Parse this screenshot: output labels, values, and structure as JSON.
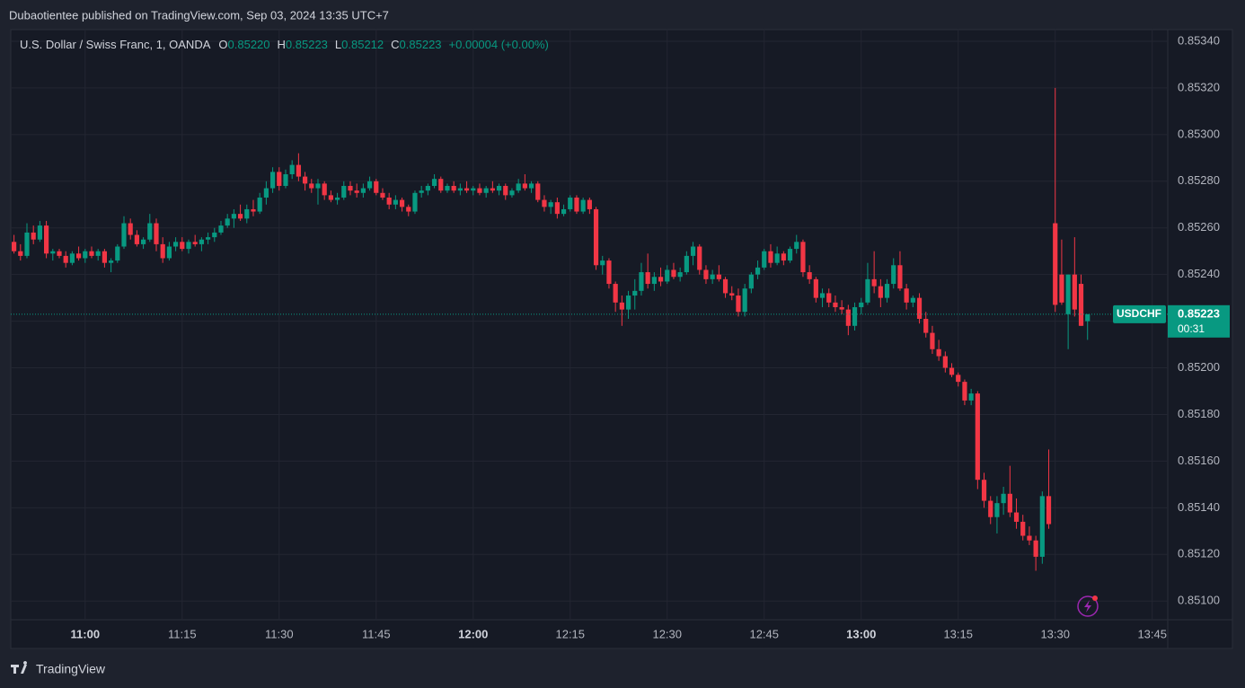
{
  "chart_data": {
    "type": "candlestick",
    "publisher_line": "Dubaotientee published on TradingView.com, Sep 03, 2024 13:35 UTC+7",
    "symbol_line": "U.S. Dollar / Swiss Franc, 1, OANDA",
    "ohlc_legend": [
      {
        "key": "O",
        "text": "0.85220"
      },
      {
        "key": "H",
        "text": "0.85223"
      },
      {
        "key": "L",
        "text": "0.85212"
      },
      {
        "key": "C",
        "text": "0.85223"
      }
    ],
    "change": "+0.00004 (+0.00%)",
    "symbol": "USDCHF",
    "last_price": {
      "value": 0.85223,
      "label": "0.85223"
    },
    "countdown": "00:31",
    "brand": "TradingView",
    "up_color": "#089981",
    "down_color": "#f23645",
    "grid": true,
    "xlim": [
      648.5,
      827.4
    ],
    "xticks": [
      {
        "value": 660,
        "label": "11:00"
      },
      {
        "value": 675,
        "label": "11:15"
      },
      {
        "value": 690,
        "label": "11:30"
      },
      {
        "value": 705,
        "label": "11:45"
      },
      {
        "value": 720,
        "label": "12:00"
      },
      {
        "value": 735,
        "label": "12:15"
      },
      {
        "value": 750,
        "label": "12:30"
      },
      {
        "value": 765,
        "label": "12:45"
      },
      {
        "value": 780,
        "label": "13:00"
      },
      {
        "value": 795,
        "label": "13:15"
      },
      {
        "value": 810,
        "label": "13:30"
      },
      {
        "value": 825,
        "label": "13:45"
      }
    ],
    "ylim": [
      0.85092,
      0.85345
    ],
    "yticks": [
      {
        "value": 0.851,
        "label": "0.85100"
      },
      {
        "value": 0.8512,
        "label": "0.85120"
      },
      {
        "value": 0.8514,
        "label": "0.85140"
      },
      {
        "value": 0.8516,
        "label": "0.85160"
      },
      {
        "value": 0.8518,
        "label": "0.85180"
      },
      {
        "value": 0.852,
        "label": "0.85200"
      },
      {
        "value": 0.8522,
        "label": "0.85220"
      },
      {
        "value": 0.8524,
        "label": "0.85240"
      },
      {
        "value": 0.8526,
        "label": "0.85260"
      },
      {
        "value": 0.8528,
        "label": "0.85280"
      },
      {
        "value": 0.853,
        "label": "0.85300"
      },
      {
        "value": 0.8532,
        "label": "0.85320"
      },
      {
        "value": 0.8534,
        "label": "0.85340"
      }
    ],
    "x": [
      649,
      650,
      651,
      652,
      653,
      654,
      655,
      656,
      657,
      658,
      659,
      660,
      661,
      662,
      663,
      664,
      665,
      666,
      667,
      668,
      669,
      670,
      671,
      672,
      673,
      674,
      675,
      676,
      677,
      678,
      679,
      680,
      681,
      682,
      683,
      684,
      685,
      686,
      687,
      688,
      689,
      690,
      691,
      692,
      693,
      694,
      695,
      696,
      697,
      698,
      699,
      700,
      701,
      702,
      703,
      704,
      705,
      706,
      707,
      708,
      709,
      710,
      711,
      712,
      713,
      714,
      715,
      716,
      717,
      718,
      719,
      720,
      721,
      722,
      723,
      724,
      725,
      726,
      727,
      728,
      729,
      730,
      731,
      732,
      733,
      734,
      735,
      736,
      737,
      738,
      739,
      740,
      741,
      742,
      743,
      744,
      745,
      746,
      747,
      748,
      749,
      750,
      751,
      752,
      753,
      754,
      755,
      756,
      757,
      758,
      759,
      760,
      761,
      762,
      763,
      764,
      765,
      766,
      767,
      768,
      769,
      770,
      771,
      772,
      773,
      774,
      775,
      776,
      777,
      778,
      779,
      780,
      781,
      782,
      783,
      784,
      785,
      786,
      787,
      788,
      789,
      790,
      791,
      792,
      793,
      794,
      795,
      796,
      797,
      798,
      799,
      800,
      801,
      802,
      803,
      804,
      805,
      806,
      807,
      808,
      809,
      810,
      811,
      812,
      813,
      814,
      815
    ],
    "candles": [
      [
        0.85254,
        0.85257,
        0.85249,
        0.8525
      ],
      [
        0.8525,
        0.85253,
        0.85246,
        0.85248
      ],
      [
        0.85248,
        0.85262,
        0.85247,
        0.85258
      ],
      [
        0.85258,
        0.85261,
        0.85253,
        0.85255
      ],
      [
        0.85255,
        0.85263,
        0.85254,
        0.85261
      ],
      [
        0.85261,
        0.85263,
        0.85247,
        0.85249
      ],
      [
        0.85249,
        0.85251,
        0.85246,
        0.8525
      ],
      [
        0.8525,
        0.85251,
        0.85247,
        0.85248
      ],
      [
        0.85248,
        0.8525,
        0.85243,
        0.85245
      ],
      [
        0.85245,
        0.8525,
        0.85244,
        0.85249
      ],
      [
        0.85249,
        0.85252,
        0.85246,
        0.85247
      ],
      [
        0.85247,
        0.85251,
        0.85245,
        0.8525
      ],
      [
        0.8525,
        0.85252,
        0.85247,
        0.85248
      ],
      [
        0.85248,
        0.85251,
        0.85246,
        0.8525
      ],
      [
        0.8525,
        0.85251,
        0.85243,
        0.85245
      ],
      [
        0.85245,
        0.85247,
        0.85241,
        0.85246
      ],
      [
        0.85246,
        0.85253,
        0.85245,
        0.85252
      ],
      [
        0.85252,
        0.85265,
        0.85251,
        0.85262
      ],
      [
        0.85262,
        0.85264,
        0.85255,
        0.85257
      ],
      [
        0.85257,
        0.85259,
        0.85252,
        0.85253
      ],
      [
        0.85253,
        0.85256,
        0.85251,
        0.85255
      ],
      [
        0.85255,
        0.85266,
        0.85254,
        0.85262
      ],
      [
        0.85262,
        0.85264,
        0.8525,
        0.85253
      ],
      [
        0.85253,
        0.85256,
        0.85245,
        0.85247
      ],
      [
        0.85247,
        0.85254,
        0.85246,
        0.85252
      ],
      [
        0.85252,
        0.85256,
        0.8525,
        0.85254
      ],
      [
        0.85254,
        0.85256,
        0.8525,
        0.85251
      ],
      [
        0.85251,
        0.85255,
        0.85249,
        0.85254
      ],
      [
        0.85254,
        0.85257,
        0.85252,
        0.85253
      ],
      [
        0.85253,
        0.85256,
        0.8525,
        0.85255
      ],
      [
        0.85255,
        0.85258,
        0.85253,
        0.85256
      ],
      [
        0.85256,
        0.8526,
        0.85254,
        0.85258
      ],
      [
        0.85258,
        0.85263,
        0.85257,
        0.85261
      ],
      [
        0.85261,
        0.85266,
        0.8526,
        0.85264
      ],
      [
        0.85264,
        0.85268,
        0.8526,
        0.85266
      ],
      [
        0.85266,
        0.8527,
        0.85263,
        0.85264
      ],
      [
        0.85264,
        0.8527,
        0.85262,
        0.85268
      ],
      [
        0.85268,
        0.85272,
        0.85265,
        0.85267
      ],
      [
        0.85267,
        0.85275,
        0.85266,
        0.85273
      ],
      [
        0.85273,
        0.8528,
        0.8527,
        0.85277
      ],
      [
        0.85277,
        0.85286,
        0.85275,
        0.85284
      ],
      [
        0.85284,
        0.85286,
        0.85276,
        0.85278
      ],
      [
        0.85278,
        0.85285,
        0.85277,
        0.85283
      ],
      [
        0.85283,
        0.85289,
        0.85281,
        0.85287
      ],
      [
        0.85287,
        0.85292,
        0.8528,
        0.85282
      ],
      [
        0.85282,
        0.85284,
        0.85276,
        0.85279
      ],
      [
        0.85279,
        0.85281,
        0.85275,
        0.85277
      ],
      [
        0.85277,
        0.85281,
        0.8527,
        0.85279
      ],
      [
        0.85279,
        0.8528,
        0.85272,
        0.85274
      ],
      [
        0.85274,
        0.85276,
        0.85271,
        0.85272
      ],
      [
        0.85272,
        0.85275,
        0.8527,
        0.85273
      ],
      [
        0.85273,
        0.8528,
        0.85272,
        0.85278
      ],
      [
        0.85278,
        0.8528,
        0.85274,
        0.85276
      ],
      [
        0.85276,
        0.85279,
        0.85273,
        0.85275
      ],
      [
        0.85275,
        0.85279,
        0.85273,
        0.85277
      ],
      [
        0.85277,
        0.85282,
        0.85276,
        0.8528
      ],
      [
        0.8528,
        0.85281,
        0.85274,
        0.85275
      ],
      [
        0.85275,
        0.85277,
        0.85272,
        0.85273
      ],
      [
        0.85273,
        0.85275,
        0.85268,
        0.8527
      ],
      [
        0.8527,
        0.85274,
        0.85268,
        0.85272
      ],
      [
        0.85272,
        0.85273,
        0.85267,
        0.85269
      ],
      [
        0.85269,
        0.8527,
        0.85265,
        0.85267
      ],
      [
        0.85267,
        0.85276,
        0.85266,
        0.85275
      ],
      [
        0.85275,
        0.85278,
        0.85273,
        0.85276
      ],
      [
        0.85276,
        0.85279,
        0.85274,
        0.85278
      ],
      [
        0.85278,
        0.85283,
        0.85277,
        0.85281
      ],
      [
        0.85281,
        0.85282,
        0.85275,
        0.85276
      ],
      [
        0.85276,
        0.85279,
        0.85275,
        0.85278
      ],
      [
        0.85278,
        0.8528,
        0.85275,
        0.85276
      ],
      [
        0.85276,
        0.85279,
        0.85274,
        0.85277
      ],
      [
        0.85277,
        0.8528,
        0.85275,
        0.85276
      ],
      [
        0.85276,
        0.85278,
        0.85274,
        0.85277
      ],
      [
        0.85277,
        0.85279,
        0.85274,
        0.85275
      ],
      [
        0.85275,
        0.85278,
        0.85273,
        0.85277
      ],
      [
        0.85277,
        0.8528,
        0.85275,
        0.85276
      ],
      [
        0.85276,
        0.85279,
        0.85274,
        0.85278
      ],
      [
        0.85278,
        0.85279,
        0.85272,
        0.85274
      ],
      [
        0.85274,
        0.85277,
        0.85273,
        0.85276
      ],
      [
        0.85276,
        0.85281,
        0.85275,
        0.85279
      ],
      [
        0.85279,
        0.85283,
        0.85276,
        0.85277
      ],
      [
        0.85277,
        0.8528,
        0.85275,
        0.85279
      ],
      [
        0.85279,
        0.8528,
        0.85271,
        0.85272
      ],
      [
        0.85272,
        0.85274,
        0.85267,
        0.85269
      ],
      [
        0.85269,
        0.85272,
        0.85266,
        0.85271
      ],
      [
        0.85271,
        0.85273,
        0.85264,
        0.85266
      ],
      [
        0.85266,
        0.8527,
        0.85265,
        0.85268
      ],
      [
        0.85268,
        0.85274,
        0.85267,
        0.85273
      ],
      [
        0.85273,
        0.85274,
        0.85266,
        0.85267
      ],
      [
        0.85267,
        0.85273,
        0.85266,
        0.85272
      ],
      [
        0.85272,
        0.85273,
        0.85266,
        0.85268
      ],
      [
        0.85268,
        0.85269,
        0.85242,
        0.85244
      ],
      [
        0.85244,
        0.85248,
        0.8524,
        0.85246
      ],
      [
        0.85246,
        0.85247,
        0.85234,
        0.85236
      ],
      [
        0.85236,
        0.85237,
        0.85224,
        0.85228
      ],
      [
        0.85228,
        0.85231,
        0.85218,
        0.85225
      ],
      [
        0.85225,
        0.85233,
        0.85221,
        0.85231
      ],
      [
        0.85231,
        0.85238,
        0.85225,
        0.85233
      ],
      [
        0.85233,
        0.85245,
        0.85231,
        0.85241
      ],
      [
        0.85241,
        0.85249,
        0.85234,
        0.85236
      ],
      [
        0.85236,
        0.85241,
        0.85233,
        0.85239
      ],
      [
        0.85239,
        0.85243,
        0.85235,
        0.85237
      ],
      [
        0.85237,
        0.85244,
        0.85236,
        0.85242
      ],
      [
        0.85242,
        0.85245,
        0.85238,
        0.85239
      ],
      [
        0.85239,
        0.85243,
        0.85237,
        0.85241
      ],
      [
        0.85241,
        0.8525,
        0.8524,
        0.85248
      ],
      [
        0.85248,
        0.85254,
        0.85244,
        0.85252
      ],
      [
        0.85252,
        0.85253,
        0.8524,
        0.85242
      ],
      [
        0.85242,
        0.85244,
        0.85236,
        0.85238
      ],
      [
        0.85238,
        0.85242,
        0.85236,
        0.8524
      ],
      [
        0.8524,
        0.85244,
        0.85237,
        0.85238
      ],
      [
        0.85238,
        0.85239,
        0.8523,
        0.85232
      ],
      [
        0.85232,
        0.85235,
        0.85229,
        0.85231
      ],
      [
        0.85231,
        0.85234,
        0.85222,
        0.85224
      ],
      [
        0.85224,
        0.85236,
        0.85222,
        0.85234
      ],
      [
        0.85234,
        0.85241,
        0.85232,
        0.8524
      ],
      [
        0.8524,
        0.85246,
        0.85238,
        0.85243
      ],
      [
        0.85243,
        0.85251,
        0.85242,
        0.8525
      ],
      [
        0.8525,
        0.85253,
        0.85243,
        0.85245
      ],
      [
        0.85245,
        0.85252,
        0.85244,
        0.85249
      ],
      [
        0.85249,
        0.8525,
        0.85244,
        0.85246
      ],
      [
        0.85246,
        0.85252,
        0.85245,
        0.85251
      ],
      [
        0.85251,
        0.85257,
        0.85249,
        0.85254
      ],
      [
        0.85254,
        0.85255,
        0.85239,
        0.85241
      ],
      [
        0.85241,
        0.85244,
        0.85236,
        0.85238
      ],
      [
        0.85238,
        0.85239,
        0.85228,
        0.8523
      ],
      [
        0.8523,
        0.85234,
        0.85226,
        0.85232
      ],
      [
        0.85232,
        0.85234,
        0.85226,
        0.85228
      ],
      [
        0.85228,
        0.85231,
        0.85224,
        0.85226
      ],
      [
        0.85226,
        0.85229,
        0.85223,
        0.85225
      ],
      [
        0.85225,
        0.85227,
        0.85214,
        0.85218
      ],
      [
        0.85218,
        0.85228,
        0.85216,
        0.85226
      ],
      [
        0.85226,
        0.8523,
        0.85223,
        0.85228
      ],
      [
        0.85228,
        0.85245,
        0.85227,
        0.85238
      ],
      [
        0.85238,
        0.8525,
        0.85232,
        0.85235
      ],
      [
        0.85235,
        0.85238,
        0.85226,
        0.8523
      ],
      [
        0.8523,
        0.85238,
        0.85228,
        0.85236
      ],
      [
        0.85236,
        0.85247,
        0.85234,
        0.85244
      ],
      [
        0.85244,
        0.8525,
        0.85233,
        0.85234
      ],
      [
        0.85234,
        0.85236,
        0.85225,
        0.85228
      ],
      [
        0.85228,
        0.85231,
        0.85226,
        0.8523
      ],
      [
        0.8523,
        0.85232,
        0.85219,
        0.85221
      ],
      [
        0.85221,
        0.85224,
        0.85213,
        0.85215
      ],
      [
        0.85215,
        0.85218,
        0.85206,
        0.85208
      ],
      [
        0.85208,
        0.85212,
        0.85203,
        0.85205
      ],
      [
        0.85205,
        0.85207,
        0.85198,
        0.852
      ],
      [
        0.852,
        0.85202,
        0.85196,
        0.85197
      ],
      [
        0.85197,
        0.85198,
        0.85192,
        0.85194
      ],
      [
        0.85194,
        0.85195,
        0.85184,
        0.85186
      ],
      [
        0.85186,
        0.85191,
        0.85184,
        0.85189
      ],
      [
        0.85189,
        0.8519,
        0.85148,
        0.85152
      ],
      [
        0.85152,
        0.85155,
        0.8514,
        0.85143
      ],
      [
        0.85143,
        0.85145,
        0.85133,
        0.85136
      ],
      [
        0.85136,
        0.85145,
        0.85129,
        0.85142
      ],
      [
        0.85142,
        0.85149,
        0.85137,
        0.85146
      ],
      [
        0.85146,
        0.85158,
        0.85136,
        0.85138
      ],
      [
        0.85138,
        0.85144,
        0.85131,
        0.85134
      ],
      [
        0.85134,
        0.85137,
        0.85126,
        0.85128
      ],
      [
        0.85128,
        0.85132,
        0.85124,
        0.85126
      ],
      [
        0.85126,
        0.85128,
        0.85113,
        0.85119
      ],
      [
        0.85119,
        0.85147,
        0.85116,
        0.85145
      ],
      [
        0.85145,
        0.85165,
        0.85131,
        0.85133
      ],
      [
        0.85262,
        0.8532,
        0.85224,
        0.85227
      ],
      [
        0.8524,
        0.85255,
        0.85227,
        0.85228
      ],
      [
        0.85223,
        0.8524,
        0.85208,
        0.8524
      ],
      [
        0.8524,
        0.85256,
        0.85222,
        0.85225
      ],
      [
        0.85236,
        0.8524,
        0.85218,
        0.85218
      ],
      [
        0.8522,
        0.85223,
        0.85212,
        0.85223
      ]
    ]
  }
}
